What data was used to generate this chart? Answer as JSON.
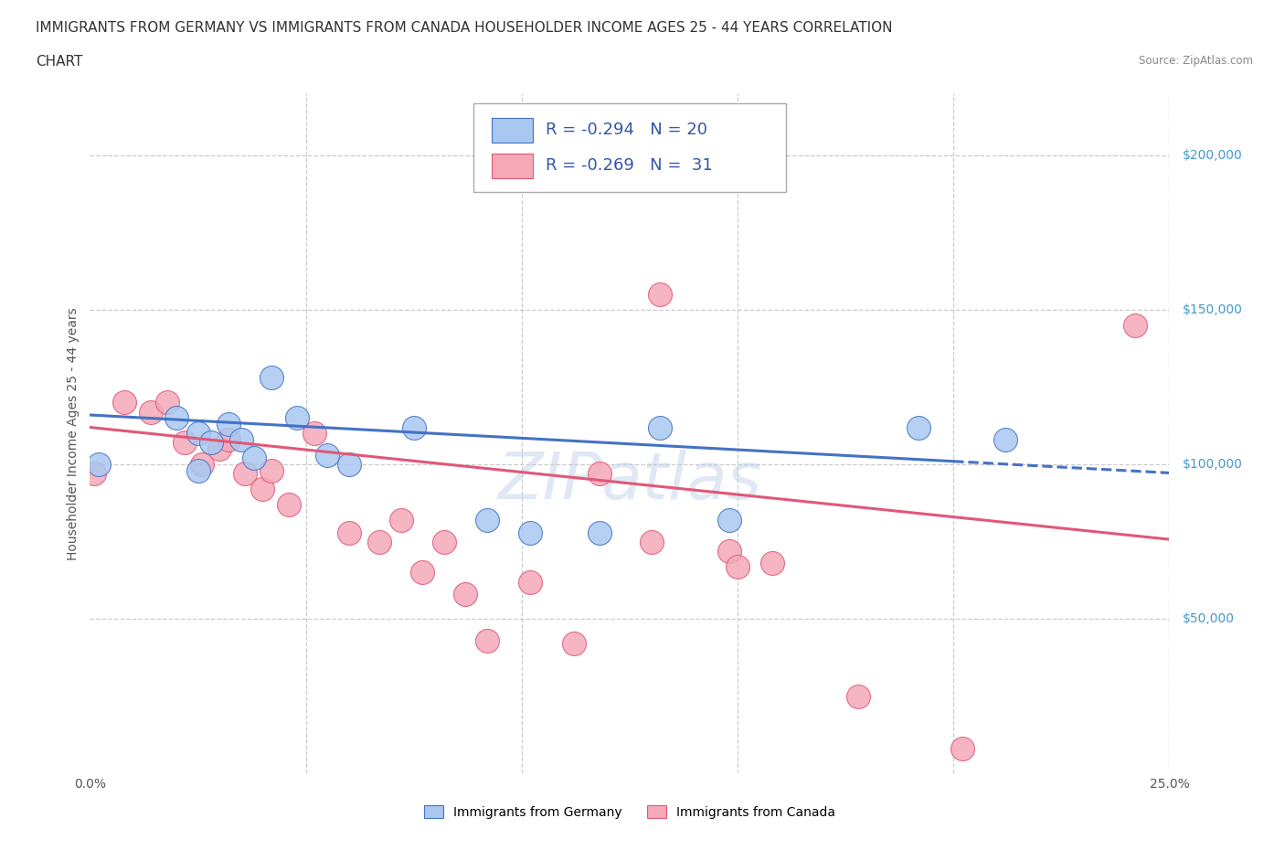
{
  "title_line1": "IMMIGRANTS FROM GERMANY VS IMMIGRANTS FROM CANADA HOUSEHOLDER INCOME AGES 25 - 44 YEARS CORRELATION",
  "title_line2": "CHART",
  "source_text": "Source: ZipAtlas.com",
  "ylabel": "Householder Income Ages 25 - 44 years",
  "xlim": [
    0.0,
    0.25
  ],
  "ylim": [
    0,
    220000
  ],
  "xticks": [
    0.0,
    0.05,
    0.1,
    0.15,
    0.2,
    0.25
  ],
  "xticklabels": [
    "0.0%",
    "",
    "",
    "",
    "",
    "25.0%"
  ],
  "ytick_positions": [
    50000,
    100000,
    150000,
    200000
  ],
  "ytick_labels": [
    "$50,000",
    "$100,000",
    "$150,000",
    "$200,000"
  ],
  "germany_R": -0.294,
  "germany_N": 20,
  "canada_R": -0.269,
  "canada_N": 31,
  "germany_color": "#a8c8f0",
  "germany_line_color": "#4472c4",
  "canada_color": "#f4a8b8",
  "canada_line_color": "#e05878",
  "legend_text_color": "#3355aa",
  "watermark": "ZIPatlas",
  "germany_x": [
    0.002,
    0.02,
    0.025,
    0.028,
    0.032,
    0.035,
    0.038,
    0.042,
    0.048,
    0.06,
    0.075,
    0.092,
    0.102,
    0.118,
    0.132,
    0.148,
    0.192,
    0.212,
    0.025,
    0.055
  ],
  "germany_y": [
    100000,
    115000,
    110000,
    107000,
    113000,
    108000,
    102000,
    128000,
    115000,
    100000,
    112000,
    82000,
    78000,
    78000,
    112000,
    82000,
    112000,
    108000,
    98000,
    103000
  ],
  "canada_x": [
    0.001,
    0.008,
    0.014,
    0.018,
    0.022,
    0.026,
    0.03,
    0.032,
    0.036,
    0.04,
    0.042,
    0.046,
    0.052,
    0.06,
    0.067,
    0.072,
    0.077,
    0.082,
    0.087,
    0.092,
    0.102,
    0.112,
    0.132,
    0.148,
    0.158,
    0.178,
    0.202,
    0.118,
    0.13,
    0.242,
    0.15
  ],
  "canada_y": [
    97000,
    120000,
    117000,
    120000,
    107000,
    100000,
    105000,
    108000,
    97000,
    92000,
    98000,
    87000,
    110000,
    78000,
    75000,
    82000,
    65000,
    75000,
    58000,
    43000,
    62000,
    42000,
    155000,
    72000,
    68000,
    25000,
    8000,
    97000,
    75000,
    145000,
    67000
  ],
  "germany_line_x0": 0.0,
  "germany_line_x1": 0.2,
  "germany_line_x2": 0.25,
  "germany_line_y0": 116000,
  "germany_line_slope": -75000,
  "canada_line_x0": 0.0,
  "canada_line_x1": 0.25,
  "canada_line_y0": 112000,
  "canada_line_slope": -145000,
  "grid_color": "#cccccc",
  "background_color": "#ffffff",
  "title_fontsize": 11,
  "axis_label_fontsize": 10,
  "tick_fontsize": 10,
  "legend_fontsize": 13
}
